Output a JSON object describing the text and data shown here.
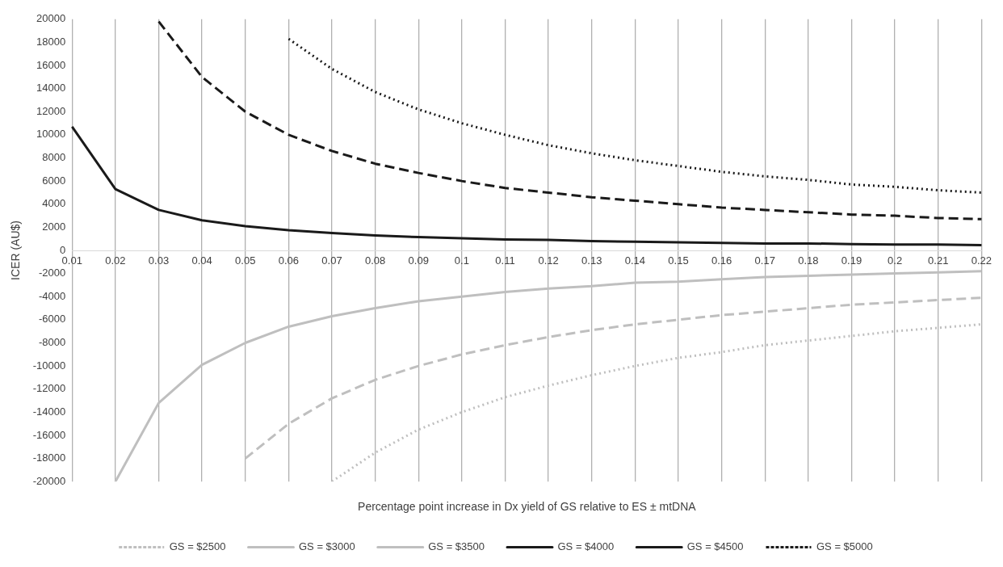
{
  "chart_data": {
    "type": "line",
    "xlabel": "Percentage point increase in Dx yield of GS relative to ES ± mtDNA",
    "ylabel": "ICER (AU$)",
    "categories": [
      "0.01",
      "0.02",
      "0.03",
      "0.04",
      "0.05",
      "0.06",
      "0.07",
      "0.08",
      "0.09",
      "0.1",
      "0.11",
      "0.12",
      "0.13",
      "0.14",
      "0.15",
      "0.16",
      "0.17",
      "0.18",
      "0.19",
      "0.2",
      "0.21",
      "0.22"
    ],
    "series": [
      {
        "name": "GS = $2500",
        "color": "#bfbfbf",
        "line_style": "dotted",
        "values": [
          null,
          null,
          null,
          null,
          null,
          null,
          -20000,
          -17500,
          -15500,
          -14000,
          -12700,
          -11700,
          -10800,
          -10000,
          -9300,
          -8800,
          -8200,
          -7800,
          -7400,
          -7000,
          -6700,
          -6400
        ]
      },
      {
        "name": "GS = $3000",
        "color": "#bfbfbf",
        "line_style": "dashed",
        "values": [
          null,
          null,
          null,
          null,
          -18000,
          -15000,
          -12800,
          -11200,
          -10000,
          -9000,
          -8200,
          -7500,
          -6900,
          -6400,
          -6000,
          -5600,
          -5300,
          -5000,
          -4700,
          -4500,
          -4300,
          -4100
        ]
      },
      {
        "name": "GS = $3500",
        "color": "#bfbfbf",
        "line_style": "solid",
        "values": [
          null,
          -20000,
          -13200,
          -9900,
          -8000,
          -6600,
          -5700,
          -5000,
          -4400,
          -4000,
          -3600,
          -3300,
          -3100,
          -2800,
          -2700,
          -2500,
          -2300,
          -2200,
          -2100,
          -2000,
          -1900,
          -1800
        ]
      },
      {
        "name": "GS = $4000",
        "color": "#1a1a1a",
        "line_style": "solid",
        "values": [
          10700,
          5300,
          3500,
          2600,
          2100,
          1750,
          1500,
          1300,
          1150,
          1050,
          950,
          900,
          800,
          750,
          700,
          650,
          600,
          600,
          550,
          500,
          500,
          450
        ]
      },
      {
        "name": "GS = $4500",
        "color": "#1a1a1a",
        "line_style": "dashed",
        "values": [
          null,
          null,
          19800,
          15000,
          12000,
          10000,
          8600,
          7500,
          6700,
          6000,
          5400,
          5000,
          4600,
          4300,
          4000,
          3700,
          3500,
          3300,
          3100,
          3000,
          2800,
          2700
        ]
      },
      {
        "name": "GS = $5000",
        "color": "#1a1a1a",
        "line_style": "dotted",
        "values": [
          null,
          null,
          null,
          null,
          null,
          18300,
          15700,
          13700,
          12200,
          11000,
          10000,
          9100,
          8400,
          7800,
          7300,
          6800,
          6400,
          6100,
          5700,
          5500,
          5200,
          5000
        ]
      }
    ],
    "ylim": [
      -20000,
      20000
    ],
    "yticks": [
      -20000,
      -18000,
      -16000,
      -14000,
      -12000,
      -10000,
      -8000,
      -6000,
      -4000,
      -2000,
      0,
      2000,
      4000,
      6000,
      8000,
      10000,
      12000,
      14000,
      16000,
      18000,
      20000
    ],
    "grid": "x",
    "legend": "bottom",
    "marker": "none"
  }
}
